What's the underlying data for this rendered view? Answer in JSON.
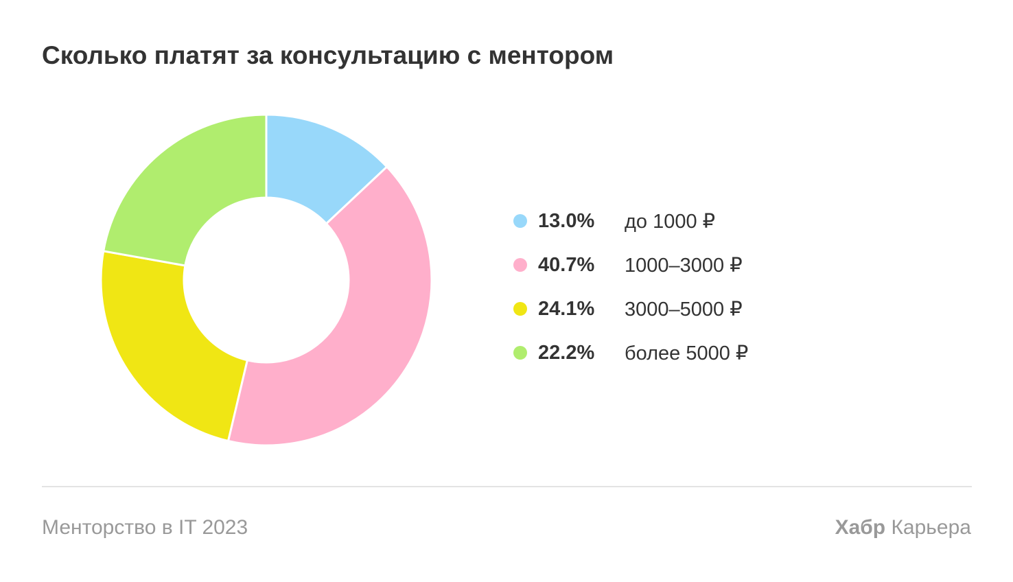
{
  "title": "Сколько платят за консультацию с ментором",
  "chart_data": {
    "type": "pie",
    "donut": true,
    "start_angle": "top, clockwise",
    "categories": [
      "до 1000 ₽",
      "1000–3000 ₽",
      "3000–5000 ₽",
      "более 5000 ₽"
    ],
    "values": [
      13.0,
      40.7,
      24.1,
      22.2
    ],
    "value_labels": [
      "13.0%",
      "40.7%",
      "24.1%",
      "22.2%"
    ],
    "colors": [
      "#98D8FA",
      "#FFAFCB",
      "#F0E614",
      "#B0ED6E"
    ],
    "legend_position": "right"
  },
  "footer": {
    "source": "Менторство в IT 2023",
    "brand_bold": "Хабр",
    "brand_rest": " Карьера"
  }
}
